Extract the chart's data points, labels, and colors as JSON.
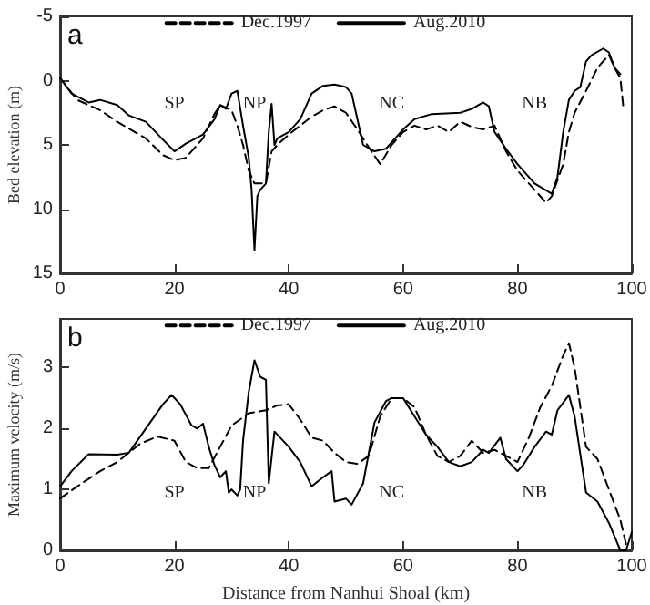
{
  "chart_data": [
    {
      "type": "line",
      "ylabel": "Bed elevation (m)",
      "xlim": [
        0,
        100
      ],
      "xticks": [
        0,
        20,
        40,
        60,
        80,
        100
      ],
      "ylim": [
        15,
        -5
      ],
      "yticks": [
        -5,
        0,
        5,
        10,
        15
      ],
      "legend": "top",
      "grid": false,
      "annotations": [
        "a",
        "SP",
        "NP",
        "NC",
        "NB"
      ],
      "series": [
        {
          "name": "Dec.1997",
          "color": "#000000",
          "line_style": "dashed",
          "x": [
            0,
            3,
            7,
            10,
            15,
            18,
            20,
            22,
            25,
            27,
            28,
            30,
            31,
            32,
            33,
            34,
            36,
            37,
            38,
            40,
            42,
            44,
            46,
            48,
            50,
            52,
            54,
            56,
            58,
            60,
            62,
            64,
            66,
            68,
            70,
            72,
            74,
            76,
            78,
            80,
            83,
            85,
            86,
            88,
            89,
            90,
            92,
            94,
            96,
            97,
            98,
            98.5
          ],
          "values": [
            -0.2,
            1.5,
            2.3,
            3.2,
            4.5,
            5.8,
            6.2,
            6.0,
            4.5,
            2.6,
            1.9,
            2.3,
            3.5,
            5.0,
            7.0,
            8.0,
            8.0,
            5.5,
            5.0,
            4.2,
            3.5,
            2.8,
            2.3,
            2.0,
            2.5,
            3.8,
            5.2,
            6.5,
            5.0,
            4.0,
            3.5,
            3.8,
            3.5,
            4.0,
            3.2,
            3.6,
            3.8,
            3.5,
            5.5,
            7.0,
            8.5,
            9.5,
            9.0,
            6.5,
            4.0,
            2.5,
            0.8,
            -1.0,
            -2.0,
            -1.0,
            -0.2,
            2.0
          ]
        },
        {
          "name": "Aug.2010",
          "color": "#000000",
          "line_style": "solid",
          "x": [
            0,
            2,
            5,
            7,
            10,
            12,
            15,
            18,
            20,
            22,
            25,
            27,
            28,
            29,
            30,
            31,
            32,
            33,
            33.5,
            34,
            34.5,
            35,
            36,
            36.5,
            37,
            37.5,
            38,
            40,
            42,
            44,
            46,
            48,
            50,
            51,
            52,
            53,
            55,
            57,
            58,
            60,
            62,
            65,
            70,
            72,
            74,
            75,
            76,
            78,
            80,
            83,
            86,
            87,
            88,
            89,
            90,
            91,
            92,
            93,
            95,
            96,
            97,
            98
          ],
          "values": [
            -0.2,
            1.0,
            1.7,
            1.5,
            1.9,
            2.7,
            3.2,
            4.6,
            5.5,
            4.9,
            4.2,
            3.0,
            1.9,
            2.2,
            1.0,
            0.8,
            3.5,
            6.0,
            8.5,
            13.2,
            9.0,
            8.5,
            8.0,
            4.0,
            1.8,
            5.0,
            4.5,
            4.0,
            3.0,
            1.0,
            0.4,
            0.3,
            0.5,
            1.0,
            3.0,
            5.0,
            5.5,
            5.3,
            4.8,
            3.8,
            3.0,
            2.6,
            2.5,
            2.2,
            1.7,
            2.0,
            4.0,
            5.3,
            6.5,
            8.0,
            8.8,
            7.5,
            4.0,
            1.5,
            0.8,
            0.5,
            -1.5,
            -2.0,
            -2.5,
            -2.2,
            -1.0,
            -0.5
          ]
        }
      ]
    },
    {
      "type": "line",
      "xlabel": "Distance from Nanhui Shoal (km)",
      "ylabel": "Maximum velocity (m/s)",
      "xlim": [
        0,
        100
      ],
      "xticks": [
        0,
        20,
        40,
        60,
        80,
        100
      ],
      "ylim": [
        0,
        3.8
      ],
      "yticks": [
        0,
        1,
        2,
        3
      ],
      "legend": "top",
      "grid": false,
      "annotations": [
        "b",
        "SP",
        "NP",
        "NC",
        "NB"
      ],
      "series": [
        {
          "name": "Dec.1997",
          "color": "#000000",
          "line_style": "dashed",
          "x": [
            0,
            3,
            7,
            10,
            14,
            17,
            20,
            22,
            24,
            26,
            28,
            30,
            33,
            36,
            38,
            40,
            42,
            44,
            46,
            48,
            50,
            52,
            54,
            56,
            58,
            60,
            62,
            64,
            66,
            68,
            70,
            72,
            74,
            76,
            78,
            80,
            82,
            84,
            86,
            88,
            89,
            90,
            92,
            94,
            96,
            98,
            99
          ],
          "values": [
            0.85,
            1.05,
            1.3,
            1.45,
            1.75,
            1.87,
            1.8,
            1.45,
            1.35,
            1.35,
            1.7,
            2.05,
            2.25,
            2.3,
            2.38,
            2.4,
            2.15,
            1.85,
            1.8,
            1.6,
            1.45,
            1.42,
            1.55,
            2.2,
            2.5,
            2.5,
            2.35,
            1.9,
            1.55,
            1.45,
            1.55,
            1.8,
            1.6,
            1.65,
            1.55,
            1.45,
            1.85,
            2.35,
            2.7,
            3.2,
            3.4,
            3.0,
            1.7,
            1.5,
            1.0,
            0.5,
            0.1
          ]
        },
        {
          "name": "Aug.2010",
          "color": "#000000",
          "line_style": "solid",
          "x": [
            0,
            2,
            5,
            10,
            12,
            15,
            18,
            19.5,
            21,
            23,
            24,
            25,
            26,
            27,
            28,
            29,
            29.5,
            30,
            31,
            31.5,
            32,
            33,
            34,
            35,
            36,
            36.5,
            37.5,
            40,
            42,
            44,
            46,
            47.5,
            48,
            50,
            51,
            53,
            54,
            55,
            57,
            58,
            60,
            62,
            64,
            66,
            68,
            70,
            72,
            74,
            75,
            77,
            78,
            80,
            81,
            83,
            85,
            86,
            87,
            89,
            90,
            92,
            94,
            96,
            98,
            99,
            100
          ],
          "values": [
            1.05,
            1.3,
            1.58,
            1.57,
            1.6,
            2.0,
            2.4,
            2.55,
            2.4,
            2.05,
            2.0,
            2.08,
            1.7,
            1.4,
            1.2,
            1.3,
            0.95,
            1.0,
            0.9,
            1.0,
            1.8,
            2.6,
            3.12,
            2.85,
            2.8,
            1.1,
            1.95,
            1.7,
            1.45,
            1.05,
            1.2,
            1.3,
            0.8,
            0.85,
            0.75,
            1.1,
            1.6,
            2.1,
            2.45,
            2.5,
            2.5,
            2.2,
            1.9,
            1.7,
            1.45,
            1.38,
            1.45,
            1.65,
            1.6,
            1.85,
            1.5,
            1.3,
            1.4,
            1.7,
            1.95,
            1.9,
            2.3,
            2.55,
            2.2,
            0.95,
            0.8,
            0.45,
            0,
            0,
            0.3
          ]
        }
      ]
    }
  ]
}
